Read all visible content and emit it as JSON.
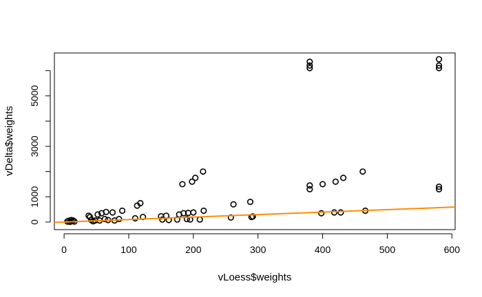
{
  "chart_data": {
    "type": "scatter",
    "title": "",
    "xlabel": "vLoess$weights",
    "ylabel": "vDelta$weights",
    "xlim": [
      -15,
      605
    ],
    "ylim": [
      -300,
      6700
    ],
    "x_ticks": [
      0,
      100,
      200,
      300,
      400,
      500,
      600
    ],
    "x_tick_labels": [
      "0",
      "100",
      "200",
      "300",
      "400",
      "500",
      "600"
    ],
    "y_ticks": [
      0,
      1000,
      2000,
      3000,
      4000,
      5000,
      6000
    ],
    "y_tick_labels": [
      "0",
      "1000",
      "",
      "3000",
      "",
      "5000",
      ""
    ],
    "grid": false,
    "legend": "none",
    "point_color": "#000000",
    "line_color": "#FF8C00",
    "points": [
      [
        5,
        20
      ],
      [
        7,
        50
      ],
      [
        9,
        10
      ],
      [
        11,
        80
      ],
      [
        12,
        30
      ],
      [
        14,
        60
      ],
      [
        16,
        20
      ],
      [
        38,
        250
      ],
      [
        40,
        200
      ],
      [
        42,
        80
      ],
      [
        45,
        30
      ],
      [
        48,
        60
      ],
      [
        52,
        300
      ],
      [
        55,
        60
      ],
      [
        58,
        350
      ],
      [
        63,
        120
      ],
      [
        65,
        400
      ],
      [
        68,
        80
      ],
      [
        75,
        380
      ],
      [
        78,
        60
      ],
      [
        85,
        120
      ],
      [
        90,
        450
      ],
      [
        110,
        150
      ],
      [
        113,
        650
      ],
      [
        118,
        750
      ],
      [
        122,
        200
      ],
      [
        150,
        230
      ],
      [
        152,
        100
      ],
      [
        158,
        250
      ],
      [
        162,
        80
      ],
      [
        175,
        100
      ],
      [
        178,
        300
      ],
      [
        183,
        1500
      ],
      [
        185,
        350
      ],
      [
        190,
        120
      ],
      [
        192,
        360
      ],
      [
        195,
        100
      ],
      [
        198,
        1600
      ],
      [
        200,
        380
      ],
      [
        203,
        1750
      ],
      [
        210,
        100
      ],
      [
        215,
        2000
      ],
      [
        216,
        450
      ],
      [
        258,
        180
      ],
      [
        262,
        700
      ],
      [
        288,
        800
      ],
      [
        290,
        200
      ],
      [
        292,
        220
      ],
      [
        380,
        1300
      ],
      [
        380,
        1450
      ],
      [
        380,
        6100
      ],
      [
        380,
        6200
      ],
      [
        380,
        6350
      ],
      [
        398,
        350
      ],
      [
        400,
        1500
      ],
      [
        418,
        380
      ],
      [
        420,
        1600
      ],
      [
        428,
        380
      ],
      [
        432,
        1750
      ],
      [
        462,
        2000
      ],
      [
        466,
        450
      ],
      [
        580,
        1300
      ],
      [
        580,
        1400
      ],
      [
        580,
        6100
      ],
      [
        580,
        6200
      ],
      [
        580,
        6450
      ]
    ],
    "fit_line": [
      [
        -15,
        -14
      ],
      [
        605,
        595
      ]
    ]
  }
}
